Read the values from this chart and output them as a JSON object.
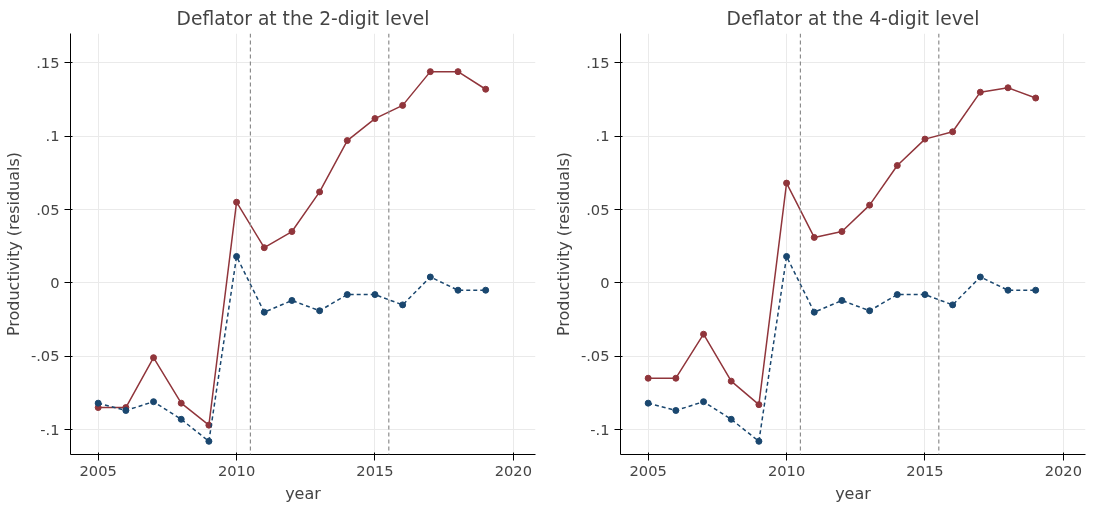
{
  "chart_data": [
    {
      "type": "line",
      "title": "Deflator at the 2-digit level",
      "xlabel": "year",
      "ylabel": "Productivity (residuals)",
      "x": [
        2005,
        2006,
        2007,
        2008,
        2009,
        2010,
        2011,
        2012,
        2013,
        2014,
        2015,
        2016,
        2017,
        2018,
        2019
      ],
      "series": [
        {
          "color": "#90353b",
          "line_style": "solid",
          "values": [
            -0.085,
            -0.085,
            -0.051,
            -0.082,
            -0.097,
            0.055,
            0.024,
            0.035,
            0.062,
            0.097,
            0.112,
            0.121,
            0.144,
            0.144,
            0.132
          ]
        },
        {
          "color": "#1a476f",
          "line_style": "dashed",
          "values": [
            -0.082,
            -0.087,
            -0.081,
            -0.093,
            -0.108,
            0.018,
            -0.02,
            -0.012,
            -0.019,
            -0.008,
            -0.008,
            -0.015,
            0.004,
            -0.005,
            -0.005
          ]
        }
      ],
      "ref_lines": [
        {
          "axis": "x",
          "value": 2010.5,
          "label": null,
          "color": "#8c8c8c",
          "line_style": "dashed"
        },
        {
          "axis": "x",
          "value": 2015.5,
          "label": null,
          "color": "#8c8c8c",
          "line_style": "dashed"
        }
      ],
      "xlim": [
        2004,
        2020.8
      ],
      "ylim": [
        -0.117,
        0.17
      ],
      "xticks": [
        2005,
        2010,
        2015,
        2020
      ],
      "yticks": [
        {
          "value": -0.1,
          "label": "-.1"
        },
        {
          "value": -0.05,
          "label": "-.05"
        },
        {
          "value": 0,
          "label": "0"
        },
        {
          "value": 0.05,
          "label": ".05"
        },
        {
          "value": 0.1,
          "label": ".1"
        },
        {
          "value": 0.15,
          "label": ".15"
        }
      ],
      "grid": true,
      "marker": "circle"
    },
    {
      "type": "line",
      "title": "Deflator at the 4-digit level",
      "xlabel": "year",
      "ylabel": "Productivity (residuals)",
      "x": [
        2005,
        2006,
        2007,
        2008,
        2009,
        2010,
        2011,
        2012,
        2013,
        2014,
        2015,
        2016,
        2017,
        2018,
        2019
      ],
      "series": [
        {
          "color": "#90353b",
          "line_style": "solid",
          "values": [
            -0.065,
            -0.065,
            -0.035,
            -0.067,
            -0.083,
            0.068,
            0.031,
            0.035,
            0.053,
            0.08,
            0.098,
            0.103,
            0.13,
            0.133,
            0.126
          ]
        },
        {
          "color": "#1a476f",
          "line_style": "dashed",
          "values": [
            -0.082,
            -0.087,
            -0.081,
            -0.093,
            -0.108,
            0.018,
            -0.02,
            -0.012,
            -0.019,
            -0.008,
            -0.008,
            -0.015,
            0.004,
            -0.005,
            -0.005
          ]
        }
      ],
      "ref_lines": [
        {
          "axis": "x",
          "value": 2010.5,
          "label": null,
          "color": "#8c8c8c",
          "line_style": "dashed"
        },
        {
          "axis": "x",
          "value": 2015.5,
          "label": null,
          "color": "#8c8c8c",
          "line_style": "dashed"
        }
      ],
      "xlim": [
        2004,
        2020.8
      ],
      "ylim": [
        -0.117,
        0.17
      ],
      "xticks": [
        2005,
        2010,
        2015,
        2020
      ],
      "yticks": [
        {
          "value": -0.1,
          "label": "-.1"
        },
        {
          "value": -0.05,
          "label": "-.05"
        },
        {
          "value": 0,
          "label": "0"
        },
        {
          "value": 0.05,
          "label": ".05"
        },
        {
          "value": 0.1,
          "label": ".1"
        },
        {
          "value": 0.15,
          "label": ".15"
        }
      ],
      "grid": true,
      "marker": "circle"
    }
  ]
}
